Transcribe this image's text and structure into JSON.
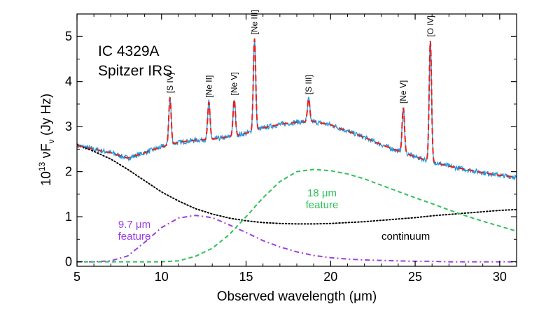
{
  "chart_data": {
    "type": "line",
    "title": "IC 4329A",
    "subtitle": "Spitzer IRS",
    "xlabel": "Observed wavelength (μm)",
    "ylabel_prefix": "10",
    "ylabel_exp": "13",
    "ylabel_main": " νF",
    "ylabel_sub": "ν",
    "ylabel_unit": " (Jy Hz)",
    "xlim": [
      5,
      31
    ],
    "ylim": [
      -0.1,
      5.5
    ],
    "xticks": [
      5,
      10,
      15,
      20,
      25,
      30
    ],
    "yticks": [
      0,
      1,
      2,
      3,
      4,
      5
    ],
    "grid": false,
    "colors": {
      "data": "#1e9be0",
      "model": "#e8201e",
      "continuum": "#000000",
      "feature18": "#2fc15a",
      "feature97": "#9b3ee0"
    },
    "lines": [
      {
        "label": "[S IV]",
        "x": 10.5,
        "peak": 3.65
      },
      {
        "label": "[Ne II]",
        "x": 12.8,
        "peak": 3.55
      },
      {
        "label": "[Ne V]",
        "x": 14.3,
        "peak": 3.6
      },
      {
        "label": "[Ne III]",
        "x": 15.5,
        "peak": 4.95
      },
      {
        "label": "[S III]",
        "x": 18.7,
        "peak": 3.62
      },
      {
        "label": "[Ne V]",
        "x": 24.3,
        "peak": 3.42
      },
      {
        "label": "[O IV]",
        "x": 25.9,
        "peak": 4.9
      }
    ],
    "series": [
      {
        "name": "continuum",
        "x": [
          5,
          6,
          7,
          8,
          9,
          10,
          11,
          12,
          13,
          14,
          15,
          16,
          17,
          18,
          19,
          20,
          21,
          22,
          23,
          24,
          25,
          26,
          27,
          28,
          29,
          30,
          31
        ],
        "y": [
          2.6,
          2.45,
          2.28,
          2.05,
          1.8,
          1.55,
          1.35,
          1.18,
          1.06,
          0.97,
          0.91,
          0.87,
          0.85,
          0.84,
          0.84,
          0.85,
          0.87,
          0.89,
          0.92,
          0.95,
          0.98,
          1.02,
          1.05,
          1.08,
          1.11,
          1.14,
          1.16
        ]
      },
      {
        "name": "9.7 μm feature",
        "x": [
          5,
          6,
          7,
          8,
          9,
          10,
          11,
          12,
          13,
          14,
          15,
          16,
          17,
          18,
          19,
          20,
          21,
          22,
          23,
          24,
          25,
          26,
          27,
          28,
          29,
          30,
          31
        ],
        "y": [
          0,
          0,
          0.02,
          0.13,
          0.43,
          0.76,
          0.97,
          1.03,
          0.98,
          0.82,
          0.65,
          0.47,
          0.33,
          0.22,
          0.14,
          0.09,
          0.06,
          0.04,
          0.03,
          0.02,
          0.01,
          0.01,
          0,
          0,
          0,
          0,
          0
        ]
      },
      {
        "name": "18 μm feature",
        "x": [
          5,
          6,
          7,
          8,
          9,
          10,
          11,
          12,
          13,
          14,
          15,
          16,
          17,
          18,
          19,
          20,
          21,
          22,
          23,
          24,
          25,
          26,
          27,
          28,
          29,
          30,
          31
        ],
        "y": [
          0,
          0,
          0,
          0,
          0,
          0,
          0.02,
          0.12,
          0.3,
          0.6,
          1.0,
          1.42,
          1.78,
          2.0,
          2.05,
          2.02,
          1.95,
          1.84,
          1.7,
          1.56,
          1.42,
          1.29,
          1.15,
          1.02,
          0.9,
          0.79,
          0.68
        ]
      },
      {
        "name": "model",
        "x": [
          5,
          6,
          7,
          8,
          9,
          10,
          11,
          12,
          13,
          14,
          15,
          16,
          17,
          18,
          19,
          20,
          21,
          22,
          23,
          24,
          25,
          26,
          27,
          28,
          29,
          30,
          31
        ],
        "y": [
          2.58,
          2.5,
          2.42,
          2.3,
          2.42,
          2.55,
          2.65,
          2.7,
          2.72,
          2.77,
          2.85,
          2.97,
          3.05,
          3.1,
          3.11,
          3.04,
          2.9,
          2.76,
          2.6,
          2.46,
          2.33,
          2.22,
          2.12,
          2.05,
          1.98,
          1.92,
          1.88
        ]
      }
    ],
    "annotations": {
      "continuum": "continuum",
      "f97_1": "9.7 μm",
      "f97_2": "feature",
      "f18_1": "18 μm",
      "f18_2": "feature"
    }
  }
}
